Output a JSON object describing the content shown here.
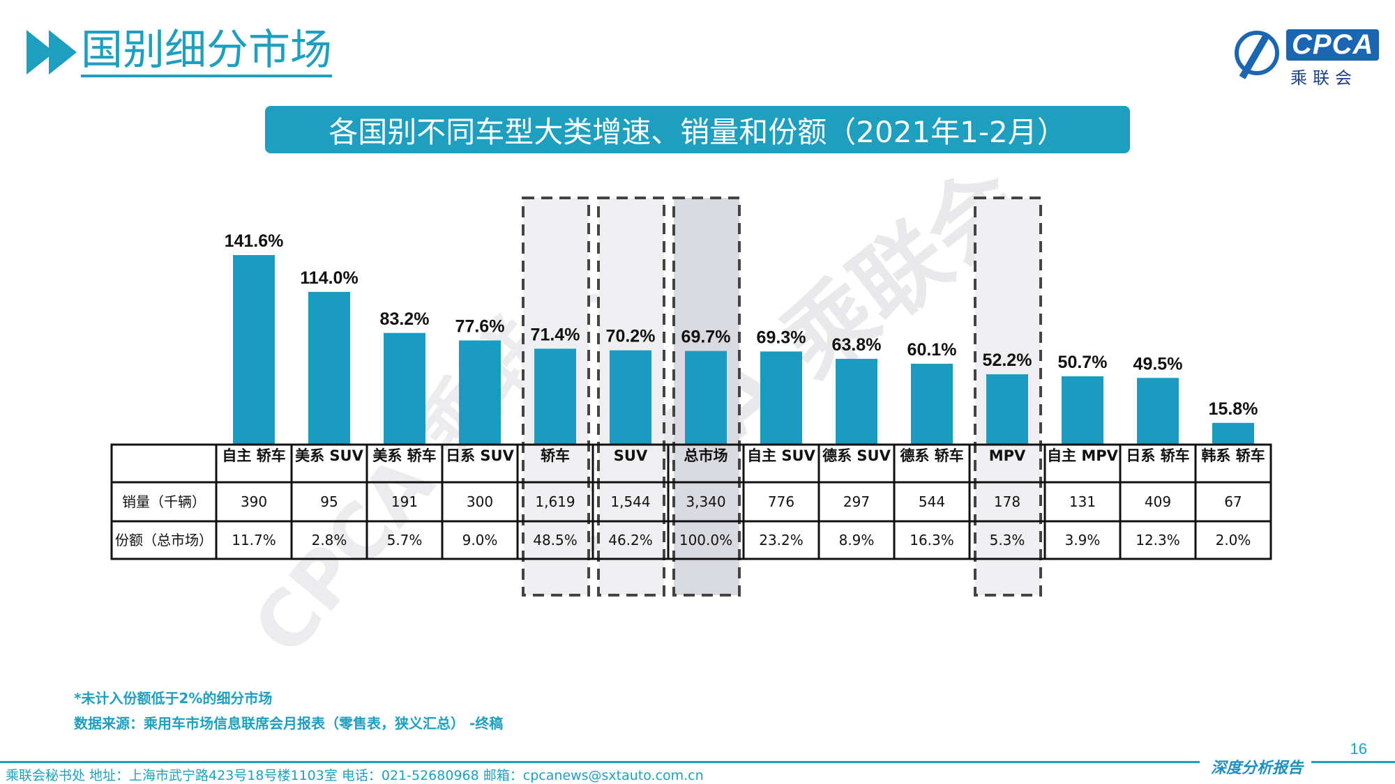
{
  "header": {
    "title": "国别细分市场",
    "banner": "各国别不同车型大类增速、销量和份额（2021年1-2月）"
  },
  "logo": {
    "text": "CPCA",
    "subtext": "乘联会",
    "watermark": "CPCA 乘联会"
  },
  "colors": {
    "accent": "#1f9fbf",
    "bar": "#1a9cc2",
    "highlight_box": "#efeff2",
    "highlight_box_dark": "#d9d9e0"
  },
  "chart_data": {
    "type": "bar",
    "categories": [
      "自主 轿车",
      "美系 SUV",
      "美系 轿车",
      "日系 SUV",
      "轿车",
      "SUV",
      "总市场",
      "自主 SUV",
      "德系 SUV",
      "德系 轿车",
      "MPV",
      "自主 MPV",
      "日系 轿车",
      "韩系 轿车"
    ],
    "values": [
      141.6,
      114.0,
      83.2,
      77.6,
      71.4,
      70.2,
      69.7,
      69.3,
      63.8,
      60.1,
      52.2,
      50.7,
      49.5,
      15.8
    ],
    "value_labels": [
      "141.6%",
      "114.0%",
      "83.2%",
      "77.6%",
      "71.4%",
      "70.2%",
      "69.7%",
      "69.3%",
      "63.8%",
      "60.1%",
      "52.2%",
      "50.7%",
      "49.5%",
      "15.8%"
    ],
    "highlighted": [
      "轿车",
      "SUV",
      "总市场",
      "MPV"
    ],
    "table": {
      "row_labels": [
        "销量（千辆）",
        "份额（总市场）"
      ],
      "sales": [
        "390",
        "95",
        "191",
        "300",
        "1,619",
        "1,544",
        "3,340",
        "776",
        "297",
        "544",
        "178",
        "131",
        "409",
        "67"
      ],
      "share": [
        "11.7%",
        "2.8%",
        "5.7%",
        "9.0%",
        "48.5%",
        "46.2%",
        "100.0%",
        "23.2%",
        "8.9%",
        "16.3%",
        "5.3%",
        "3.9%",
        "12.3%",
        "2.0%"
      ]
    }
  },
  "notes": {
    "note1": "*未计入份额低于2%的细分市场",
    "note2": "数据来源：乘用车市场信息联席会月报表（零售表，狭义汇总） -终稿"
  },
  "page_number": "16",
  "footer": {
    "left": "乘联会秘书处   地址：上海市武宁路423号18号楼1103室  电话：021-52680968   邮箱：cpcanews@sxtauto.com.cn",
    "right": "深度分析报告"
  }
}
